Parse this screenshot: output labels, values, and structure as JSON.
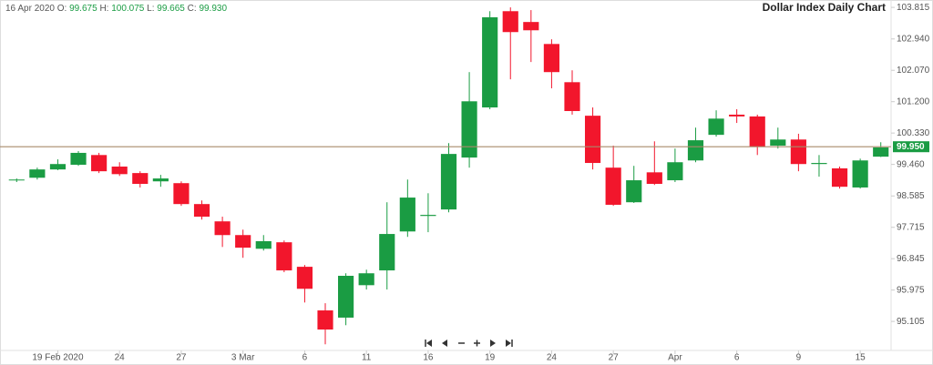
{
  "chart_data": {
    "type": "candlestick",
    "title": "Dollar Index Daily Chart",
    "header": {
      "date": "16 Apr 2020",
      "items": [
        {
          "label": "O:",
          "value": "99.675"
        },
        {
          "label": "H:",
          "value": "100.075"
        },
        {
          "label": "L:",
          "value": "99.665"
        },
        {
          "label": "C:",
          "value": "99.930"
        }
      ]
    },
    "categories": [
      null,
      null,
      "19 Feb 2020",
      null,
      null,
      "24",
      null,
      null,
      "27",
      null,
      null,
      "3 Mar",
      null,
      null,
      "6",
      null,
      null,
      "11",
      null,
      null,
      "16",
      null,
      null,
      "19",
      null,
      null,
      "24",
      null,
      null,
      "27",
      null,
      null,
      "Apr",
      null,
      null,
      "6",
      null,
      null,
      "9",
      null,
      null,
      "15",
      null
    ],
    "open": [
      99.02,
      99.09,
      99.32,
      99.45,
      99.72,
      99.4,
      99.22,
      98.99,
      98.94,
      98.36,
      97.88,
      97.5,
      97.12,
      97.3,
      96.62,
      95.41,
      95.21,
      96.11,
      96.52,
      97.6,
      98.03,
      98.21,
      99.65,
      101.04,
      103.71,
      103.41,
      102.8,
      101.74,
      100.81,
      99.37,
      98.41,
      99.24,
      99.02,
      99.57,
      100.28,
      100.84,
      100.79,
      99.98,
      100.15,
      99.47,
      99.35,
      98.82,
      99.675
    ],
    "high": [
      99.07,
      99.37,
      99.6,
      99.83,
      99.78,
      99.52,
      99.27,
      99.17,
      98.99,
      98.46,
      98.01,
      97.65,
      97.5,
      97.35,
      96.67,
      95.61,
      96.44,
      96.54,
      98.41,
      99.04,
      98.66,
      100.05,
      102.02,
      103.71,
      103.815,
      103.74,
      102.93,
      102.07,
      101.04,
      99.98,
      99.42,
      100.1,
      99.9,
      100.48,
      100.96,
      100.99,
      100.84,
      100.48,
      100.31,
      99.72,
      99.4,
      99.62,
      100.075
    ],
    "low": [
      98.97,
      99.04,
      99.3,
      99.42,
      99.22,
      99.14,
      98.82,
      98.84,
      98.31,
      97.93,
      97.17,
      96.87,
      97.07,
      96.47,
      95.63,
      94.47,
      95.0,
      95.99,
      95.99,
      97.45,
      97.58,
      98.13,
      99.37,
      100.99,
      101.82,
      102.3,
      101.57,
      100.84,
      99.32,
      98.31,
      98.39,
      98.89,
      98.97,
      99.52,
      100.23,
      100.61,
      99.72,
      99.9,
      99.27,
      99.12,
      98.79,
      98.79,
      99.665
    ],
    "close": [
      99.04,
      99.32,
      99.47,
      99.78,
      99.27,
      99.19,
      98.92,
      99.07,
      98.36,
      98.01,
      97.5,
      97.15,
      97.33,
      96.52,
      96.01,
      94.88,
      96.37,
      96.44,
      97.53,
      98.54,
      98.06,
      99.75,
      101.21,
      103.54,
      103.13,
      103.18,
      102.02,
      100.94,
      99.5,
      98.34,
      99.02,
      98.92,
      99.52,
      100.13,
      100.73,
      100.79,
      99.95,
      100.15,
      99.47,
      99.5,
      98.84,
      99.57,
      99.93
    ],
    "up_color": "#1a9c43",
    "down_color": "#f2162c",
    "ylim": [
      94.3,
      104.02
    ],
    "yticks": [
      103.815,
      {
        "value": 102.94,
        "label": "102.940"
      },
      {
        "value": 102.07,
        "label": "102.070"
      },
      {
        "value": 101.2,
        "label": "101.200"
      },
      {
        "value": 100.33,
        "label": "100.330"
      },
      {
        "value": 99.46,
        "label": "99.460"
      },
      98.585,
      97.715,
      96.845,
      95.975,
      95.105
    ],
    "price_line": {
      "value": 99.95,
      "label": "99.950",
      "color": "#a88a6a"
    }
  }
}
